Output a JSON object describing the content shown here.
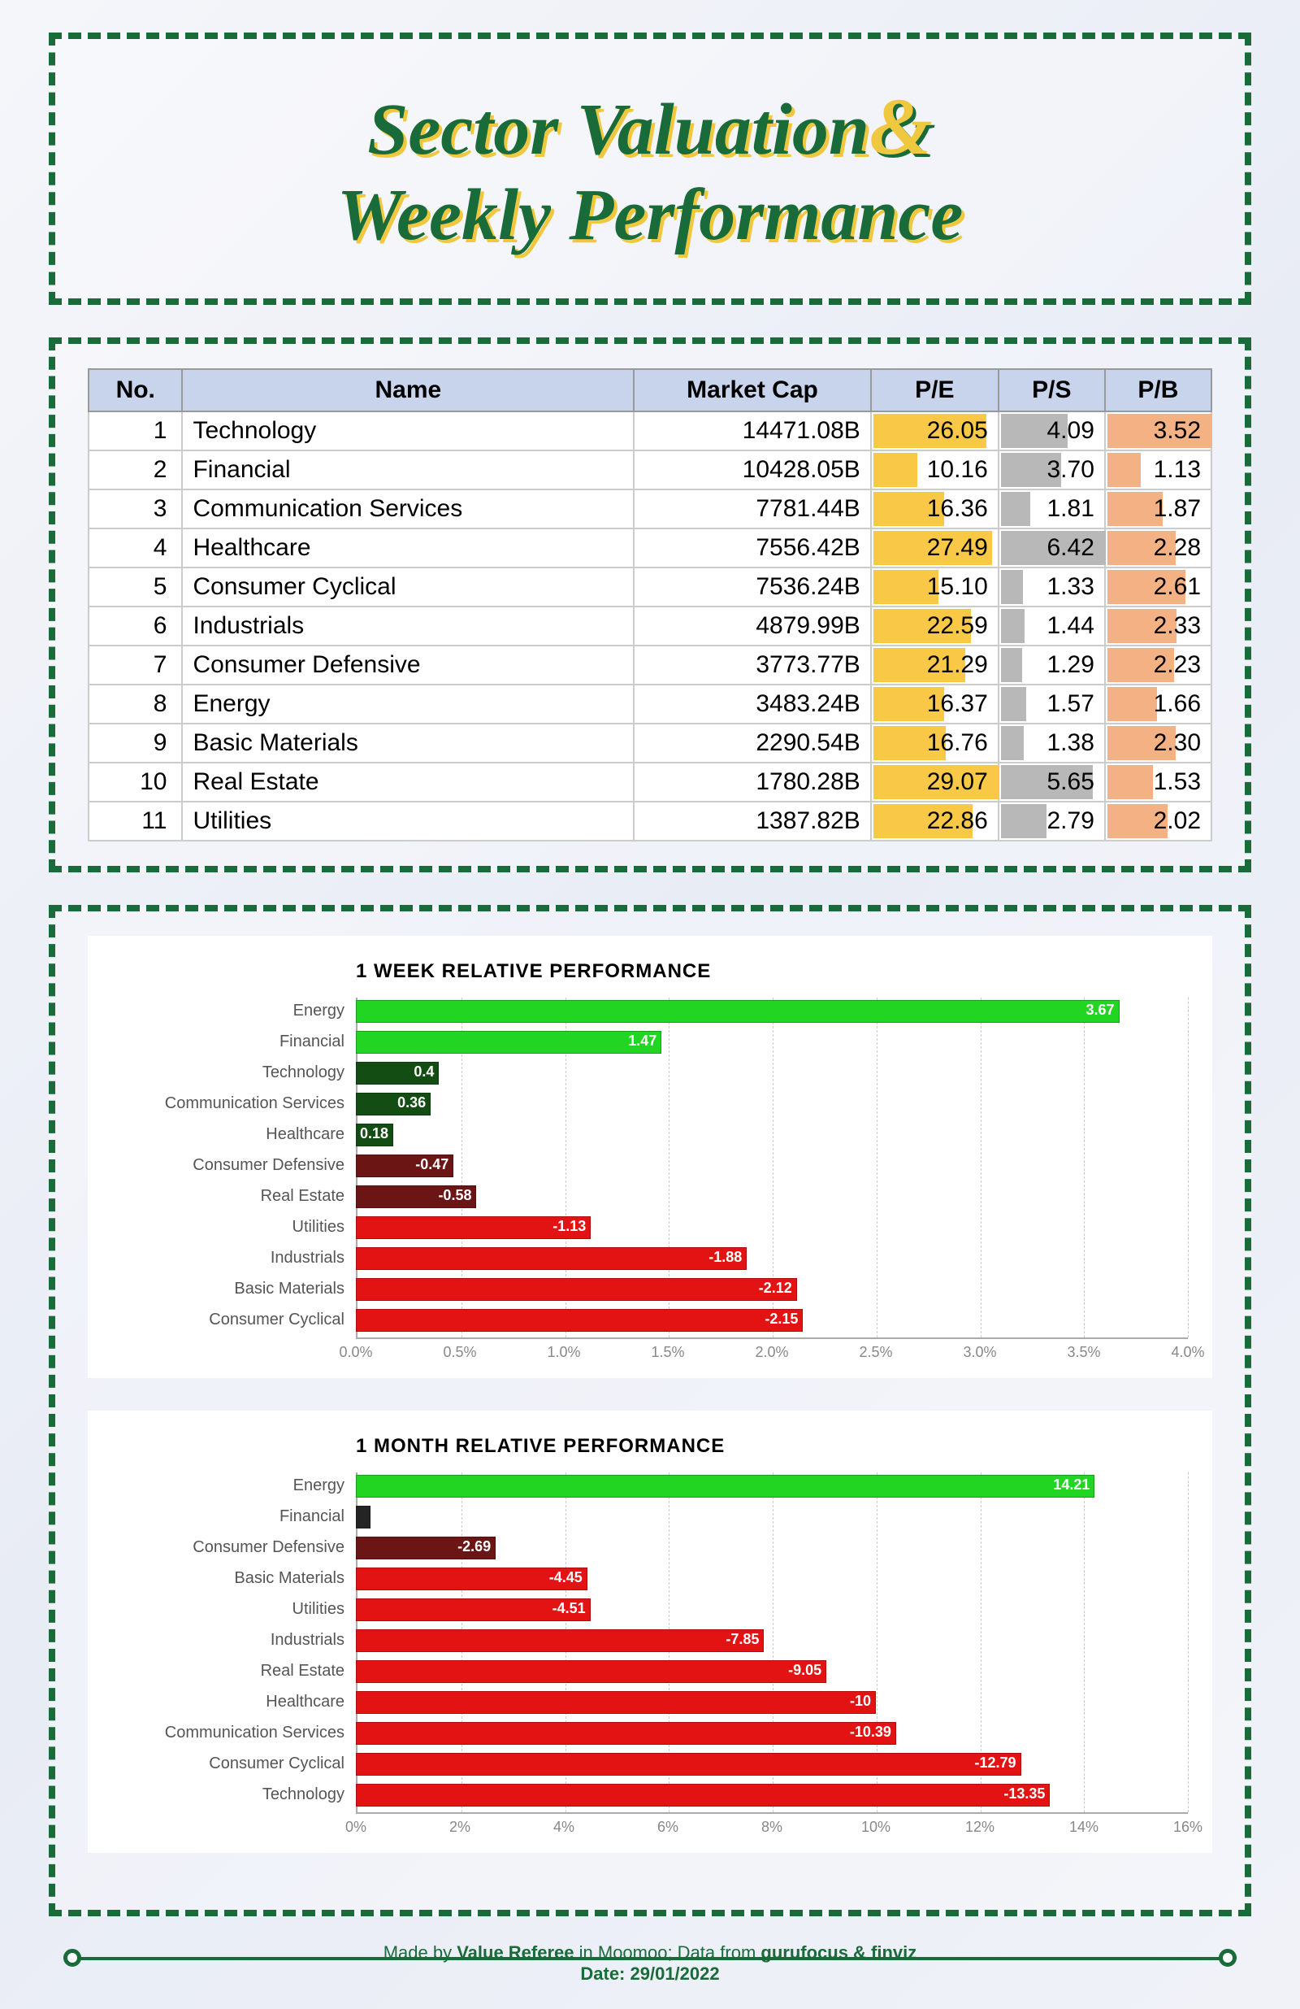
{
  "title_line1": "Sector Valuation",
  "title_amp": "&",
  "title_line2": "Weekly Performance",
  "table": {
    "columns": [
      "No.",
      "Name",
      "Market Cap",
      "P/E",
      "P/S",
      "P/B"
    ],
    "pe_color": "#f9c846",
    "ps_color": "#b8b8b8",
    "pb_color": "#f4b183",
    "pe_max": 29.07,
    "ps_max": 6.42,
    "pb_max": 3.52,
    "rows": [
      {
        "no": 1,
        "name": "Technology",
        "mc": "14471.08B",
        "pe": 26.05,
        "ps": 4.09,
        "pb": 3.52
      },
      {
        "no": 2,
        "name": "Financial",
        "mc": "10428.05B",
        "pe": 10.16,
        "ps": 3.7,
        "pb": 1.13
      },
      {
        "no": 3,
        "name": "Communication Services",
        "mc": "7781.44B",
        "pe": 16.36,
        "ps": 1.81,
        "pb": 1.87
      },
      {
        "no": 4,
        "name": "Healthcare",
        "mc": "7556.42B",
        "pe": 27.49,
        "ps": 6.42,
        "pb": 2.28
      },
      {
        "no": 5,
        "name": "Consumer Cyclical",
        "mc": "7536.24B",
        "pe": 15.1,
        "ps": 1.33,
        "pb": 2.61
      },
      {
        "no": 6,
        "name": "Industrials",
        "mc": "4879.99B",
        "pe": 22.59,
        "ps": 1.44,
        "pb": 2.33
      },
      {
        "no": 7,
        "name": "Consumer Defensive",
        "mc": "3773.77B",
        "pe": 21.29,
        "ps": 1.29,
        "pb": 2.23
      },
      {
        "no": 8,
        "name": "Energy",
        "mc": "3483.24B",
        "pe": 16.37,
        "ps": 1.57,
        "pb": 1.66
      },
      {
        "no": 9,
        "name": "Basic Materials",
        "mc": "2290.54B",
        "pe": 16.76,
        "ps": 1.38,
        "pb": 2.3
      },
      {
        "no": 10,
        "name": "Real Estate",
        "mc": "1780.28B",
        "pe": 29.07,
        "ps": 5.65,
        "pb": 1.53
      },
      {
        "no": 11,
        "name": "Utilities",
        "mc": "1387.82B",
        "pe": 22.86,
        "ps": 2.79,
        "pb": 2.02
      }
    ]
  },
  "chart_week": {
    "title": "1 WEEK RELATIVE PERFORMANCE",
    "xmax": 4.0,
    "xtick_step": 0.5,
    "tick_suffix": "%",
    "pos_bright": "#22d522",
    "pos_dark": "#144d14",
    "neg_dark": "#6b1515",
    "neg_bright": "#e31313",
    "near_zero": "#242424",
    "dark_threshold": 0.6,
    "bars": [
      {
        "label": "Energy",
        "value": 3.67
      },
      {
        "label": "Financial",
        "value": 1.47
      },
      {
        "label": "Technology",
        "value": 0.4
      },
      {
        "label": "Communication Services",
        "value": 0.36
      },
      {
        "label": "Healthcare",
        "value": 0.18
      },
      {
        "label": "Consumer Defensive",
        "value": -0.47
      },
      {
        "label": "Real Estate",
        "value": -0.58
      },
      {
        "label": "Utilities",
        "value": -1.13
      },
      {
        "label": "Industrials",
        "value": -1.88
      },
      {
        "label": "Basic Materials",
        "value": -2.12
      },
      {
        "label": "Consumer Cyclical",
        "value": -2.15
      }
    ]
  },
  "chart_month": {
    "title": "1 MONTH RELATIVE PERFORMANCE",
    "xmax": 16.0,
    "xtick_step": 2,
    "tick_suffix": "%",
    "pos_bright": "#22d522",
    "pos_dark": "#144d14",
    "neg_dark": "#6b1515",
    "neg_bright": "#e31313",
    "near_zero": "#242424",
    "dark_threshold": 3.0,
    "bars": [
      {
        "label": "Energy",
        "value": 14.21
      },
      {
        "label": "Financial",
        "value": -0.28
      },
      {
        "label": "Consumer Defensive",
        "value": -2.69
      },
      {
        "label": "Basic Materials",
        "value": -4.45
      },
      {
        "label": "Utilities",
        "value": -4.51
      },
      {
        "label": "Industrials",
        "value": -7.85
      },
      {
        "label": "Real Estate",
        "value": -9.05
      },
      {
        "label": "Healthcare",
        "value": -10
      },
      {
        "label": "Communication Services",
        "value": -10.39
      },
      {
        "label": "Consumer Cyclical",
        "value": -12.79
      },
      {
        "label": "Technology",
        "value": -13.35
      }
    ]
  },
  "footer": {
    "made_by_pre": "Made by ",
    "made_by_name": "Value Referee",
    "made_by_mid": " in Moomoo; Data from ",
    "sources": "gurufocus & finviz",
    "date_label": "Date: ",
    "date": "29/01/2022"
  }
}
